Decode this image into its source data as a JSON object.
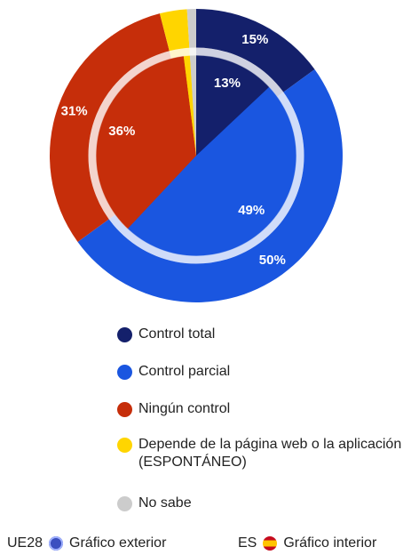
{
  "chart_data": {
    "type": "pie",
    "categories": [
      "Control total",
      "Control parcial",
      "Ningún control",
      "Depende de la página web o la aplicación (ESPONTÁNEO)",
      "No sabe"
    ],
    "colors": [
      "#14206b",
      "#1a56e0",
      "#c62e0a",
      "#ffd500",
      "#cccccc"
    ],
    "series": [
      {
        "name": "UE28",
        "caption": "Gráfico exterior",
        "values": [
          15,
          50,
          31,
          3,
          1
        ],
        "value_labels": [
          "15%",
          "50%",
          "31%",
          null,
          null
        ]
      },
      {
        "name": "ES",
        "caption": "Gráfico interior",
        "values": [
          13,
          49,
          36,
          1,
          1
        ],
        "value_labels": [
          "13%",
          "49%",
          "36%",
          null,
          null
        ]
      }
    ]
  }
}
